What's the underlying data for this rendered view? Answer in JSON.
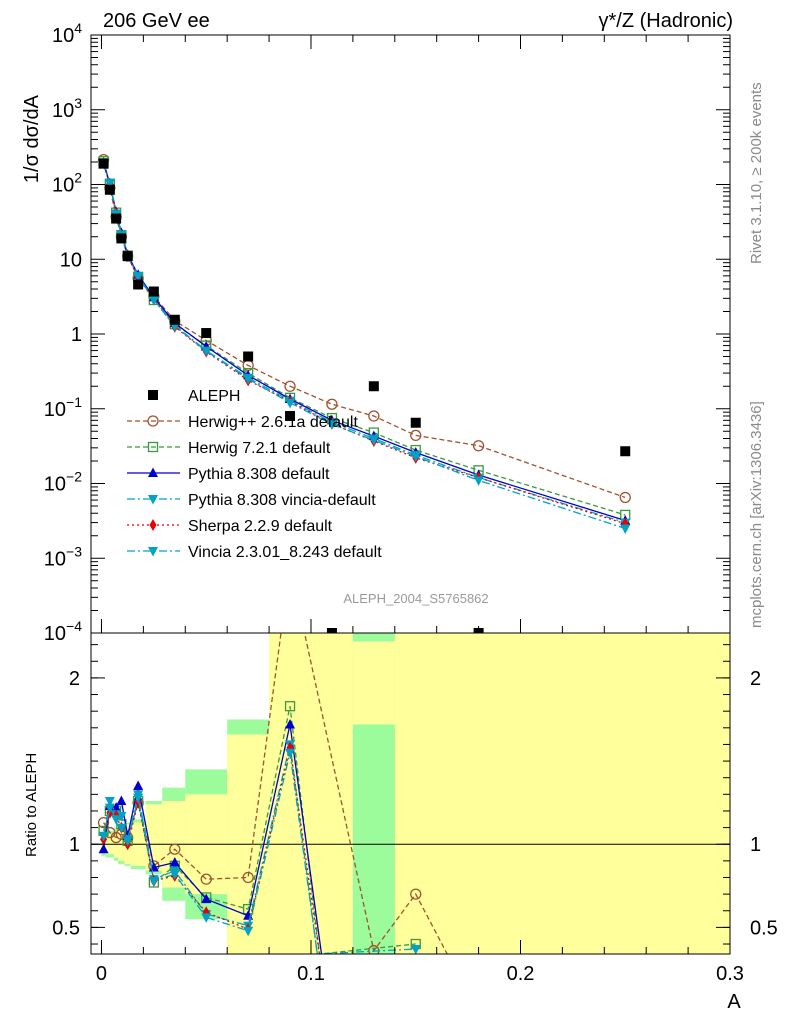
{
  "header": {
    "left": "206 GeV ee",
    "right": "γ*/Z (Hadronic)"
  },
  "side": {
    "rivet": "Rivet 3.1.10, ≥ 200k events",
    "mcplots": "mcplots.cern.ch [arXiv:1306.3436]"
  },
  "watermark": "ALEPH_2004_S5765862",
  "colors": {
    "data": "#000000",
    "herwigpp": "#a0522d",
    "herwig7": "#3a9a3a",
    "pythia": "#0000cc",
    "pythia_vincia": "#00a3c4",
    "sherpa": "#ee0000",
    "vincia": "#00a3c4",
    "band_stat": "#ffff9c",
    "band_tot": "#9cfc9c"
  },
  "chart_data": [
    {
      "type": "scatter",
      "ylabel": "1/σ  dσ/dA",
      "yscale": "log",
      "xlim": [
        -0.005,
        0.3
      ],
      "ylim": [
        0.0001,
        10000
      ],
      "yticks": [
        {
          "v": 0.0001,
          "base": "10",
          "exp": "−4"
        },
        {
          "v": 0.001,
          "base": "10",
          "exp": "−3"
        },
        {
          "v": 0.01,
          "base": "10",
          "exp": "−2"
        },
        {
          "v": 0.1,
          "base": "10",
          "exp": "−1"
        },
        {
          "v": 1,
          "base": "1",
          "exp": ""
        },
        {
          "v": 10,
          "base": "10",
          "exp": ""
        },
        {
          "v": 100,
          "base": "10",
          "exp": "2"
        },
        {
          "v": 1000,
          "base": "10",
          "exp": "3"
        },
        {
          "v": 10000,
          "base": "10",
          "exp": "4"
        }
      ],
      "legend_position": "lower-left",
      "series": [
        {
          "key": "aleph",
          "name": "ALEPH",
          "style": "data",
          "x": [
            0.001,
            0.004,
            0.007,
            0.0095,
            0.0125,
            0.0175,
            0.025,
            0.035,
            0.05,
            0.07,
            0.09,
            0.11,
            0.13,
            0.15,
            0.18,
            0.25
          ],
          "y": [
            190,
            85,
            35,
            19,
            11,
            4.6,
            3.7,
            1.55,
            1.03,
            0.5,
            0.08,
            0.0001,
            0.2,
            0.065,
            0.0001,
            0.027
          ]
        },
        {
          "key": "herwigpp",
          "name": "Herwig++ 2.6.1a default",
          "style": "circle",
          "dash": "5,3",
          "x": [
            0.001,
            0.004,
            0.007,
            0.0095,
            0.0125,
            0.0175,
            0.025,
            0.035,
            0.05,
            0.07,
            0.09,
            0.11,
            0.13,
            0.15,
            0.18,
            0.25
          ],
          "y": [
            215,
            90,
            37,
            20,
            11,
            5.6,
            3.2,
            1.5,
            0.82,
            0.38,
            0.2,
            0.115,
            0.08,
            0.044,
            0.032,
            0.0065
          ]
        },
        {
          "key": "herwig7",
          "name": "Herwig 7.2.1 default",
          "style": "square",
          "dash": "5,3",
          "x": [
            0.001,
            0.004,
            0.007,
            0.0095,
            0.0125,
            0.0175,
            0.025,
            0.035,
            0.05,
            0.07,
            0.09,
            0.11,
            0.13,
            0.15,
            0.18,
            0.25
          ],
          "y": [
            205,
            102,
            42,
            21,
            11.2,
            5.8,
            2.85,
            1.35,
            0.7,
            0.3,
            0.14,
            0.075,
            0.048,
            0.028,
            0.015,
            0.0038
          ]
        },
        {
          "key": "pythia",
          "name": "Pythia 8.308 default",
          "style": "tri-up",
          "dash": "",
          "x": [
            0.001,
            0.004,
            0.007,
            0.0095,
            0.0125,
            0.0175,
            0.025,
            0.035,
            0.05,
            0.07,
            0.09,
            0.11,
            0.13,
            0.15,
            0.18,
            0.25
          ],
          "y": [
            185,
            104,
            43,
            22.5,
            11.5,
            6.2,
            3.1,
            1.4,
            0.68,
            0.28,
            0.135,
            0.07,
            0.043,
            0.026,
            0.013,
            0.0032
          ]
        },
        {
          "key": "pythia_vincia",
          "name": "Pythia 8.308 vincia-default",
          "style": "tri-down",
          "dash": "8,3,2,3",
          "x": [
            0.001,
            0.004,
            0.007,
            0.0095,
            0.0125,
            0.0175,
            0.025,
            0.035,
            0.05,
            0.07,
            0.09,
            0.11,
            0.13,
            0.15,
            0.18,
            0.25
          ],
          "y": [
            200,
            106,
            41,
            21.5,
            11.3,
            6.0,
            2.9,
            1.3,
            0.6,
            0.26,
            0.128,
            0.066,
            0.04,
            0.024,
            0.012,
            0.003
          ]
        },
        {
          "key": "sherpa",
          "name": "Sherpa 2.2.9 default",
          "style": "diamond",
          "dash": "2,3",
          "x": [
            0.001,
            0.004,
            0.007,
            0.0095,
            0.0125,
            0.0175,
            0.025,
            0.035,
            0.05,
            0.07,
            0.09,
            0.11,
            0.13,
            0.15,
            0.18,
            0.25
          ],
          "y": [
            195,
            101,
            41,
            21,
            11.1,
            5.7,
            2.9,
            1.25,
            0.58,
            0.24,
            0.125,
            0.063,
            0.037,
            0.022,
            0.012,
            0.0029
          ]
        },
        {
          "key": "vincia",
          "name": "Vincia 2.3.01_8.243 default",
          "style": "tri-down",
          "dash": "8,3,2,3",
          "x": [
            0.001,
            0.004,
            0.007,
            0.0095,
            0.0125,
            0.0175,
            0.025,
            0.035,
            0.05,
            0.07,
            0.09,
            0.11,
            0.13,
            0.15,
            0.18,
            0.25
          ],
          "y": [
            198,
            104,
            40,
            21,
            11.2,
            5.9,
            2.85,
            1.27,
            0.59,
            0.25,
            0.12,
            0.062,
            0.038,
            0.023,
            0.011,
            0.0025
          ]
        }
      ]
    },
    {
      "type": "line",
      "ylabel": "Ratio to ALEPH",
      "xlabel": "A",
      "xlim": [
        -0.005,
        0.3
      ],
      "ylim": [
        0.34,
        2.27
      ],
      "xticks": [
        {
          "v": 0,
          "label": "0"
        },
        {
          "v": 0.1,
          "label": "0.1"
        },
        {
          "v": 0.2,
          "label": "0.2"
        },
        {
          "v": 0.3,
          "label": "0.3"
        }
      ],
      "yticks": [
        {
          "v": 0.5,
          "label": "0.5"
        },
        {
          "v": 1,
          "label": "1"
        },
        {
          "v": 2,
          "label": "2"
        }
      ],
      "bands": [
        {
          "x0": 0,
          "x1": 0.002,
          "tot": [
            0.93,
            1.07
          ],
          "stat": [
            0.95,
            1.05
          ]
        },
        {
          "x0": 0.002,
          "x1": 0.006,
          "tot": [
            0.92,
            1.08
          ],
          "stat": [
            0.94,
            1.06
          ]
        },
        {
          "x0": 0.006,
          "x1": 0.008,
          "tot": [
            0.9,
            1.1
          ],
          "stat": [
            0.92,
            1.08
          ]
        },
        {
          "x0": 0.008,
          "x1": 0.011,
          "tot": [
            0.88,
            1.12
          ],
          "stat": [
            0.9,
            1.1
          ]
        },
        {
          "x0": 0.011,
          "x1": 0.014,
          "tot": [
            0.87,
            1.13
          ],
          "stat": [
            0.88,
            1.12
          ]
        },
        {
          "x0": 0.014,
          "x1": 0.021,
          "tot": [
            0.85,
            1.15
          ],
          "stat": [
            0.87,
            1.13
          ]
        },
        {
          "x0": 0.021,
          "x1": 0.029,
          "tot": [
            0.82,
            1.26
          ],
          "stat": [
            0.84,
            1.24
          ]
        },
        {
          "x0": 0.029,
          "x1": 0.04,
          "tot": [
            0.66,
            1.34
          ],
          "stat": [
            0.74,
            1.26
          ]
        },
        {
          "x0": 0.04,
          "x1": 0.06,
          "tot": [
            0.55,
            1.45
          ],
          "stat": [
            0.7,
            1.3
          ]
        },
        {
          "x0": 0.06,
          "x1": 0.08,
          "tot": [
            0.25,
            1.75
          ],
          "stat": [
            0.34,
            1.66
          ]
        },
        {
          "x0": 0.08,
          "x1": 0.12,
          "tot": [
            0.25,
            2.8
          ],
          "stat": [
            0.25,
            2.8
          ]
        },
        {
          "x0": 0.12,
          "x1": 0.14,
          "tot": [
            0.25,
            2.8
          ],
          "stat": [
            1.72,
            2.22
          ]
        },
        {
          "x0": 0.14,
          "x1": 0.3,
          "tot": [
            0.25,
            2.8
          ],
          "stat": [
            0.25,
            2.8
          ]
        }
      ],
      "series": [
        {
          "key": "herwigpp",
          "x": [
            0.001,
            0.004,
            0.007,
            0.0095,
            0.0125,
            0.0175,
            0.025,
            0.035,
            0.05,
            0.07,
            0.09,
            0.13,
            0.15,
            0.165
          ],
          "y": [
            1.13,
            1.07,
            1.04,
            1.06,
            1.04,
            1.25,
            0.87,
            0.97,
            0.79,
            0.8,
            2.67,
            0.36,
            0.7,
            0.34
          ]
        },
        {
          "key": "herwig7",
          "x": [
            0.001,
            0.004,
            0.007,
            0.0095,
            0.0125,
            0.0175,
            0.025,
            0.035,
            0.05,
            0.07,
            0.09,
            0.104,
            0.15
          ],
          "y": [
            1.08,
            1.2,
            1.2,
            1.12,
            1.02,
            1.26,
            0.77,
            0.87,
            0.68,
            0.61,
            1.83,
            0.34,
            0.4
          ]
        },
        {
          "key": "pythia",
          "x": [
            0.001,
            0.004,
            0.007,
            0.0095,
            0.0125,
            0.0175,
            0.025,
            0.035,
            0.05,
            0.07,
            0.09,
            0.105
          ],
          "y": [
            0.97,
            1.23,
            1.22,
            1.26,
            1.05,
            1.35,
            0.86,
            0.89,
            0.67,
            0.57,
            1.72,
            0.34
          ]
        },
        {
          "key": "pythia_vincia",
          "x": [
            0.001,
            0.004,
            0.007,
            0.0095,
            0.0125,
            0.0175,
            0.025,
            0.035,
            0.05,
            0.07,
            0.09,
            0.103,
            0.15
          ],
          "y": [
            1.05,
            1.26,
            1.18,
            1.17,
            1.03,
            1.3,
            0.79,
            0.84,
            0.58,
            0.51,
            1.6,
            0.34,
            0.37
          ]
        },
        {
          "key": "sherpa",
          "x": [
            0.001,
            0.004,
            0.007,
            0.0095,
            0.0125,
            0.0175,
            0.025,
            0.035,
            0.05,
            0.07,
            0.09,
            0.104
          ],
          "y": [
            1.03,
            1.19,
            1.17,
            1.1,
            1.0,
            1.25,
            0.78,
            0.81,
            0.59,
            0.49,
            1.58,
            0.34
          ]
        },
        {
          "key": "vincia",
          "x": [
            0.001,
            0.004,
            0.007,
            0.0095,
            0.0125,
            0.0175,
            0.025,
            0.035,
            0.05,
            0.07,
            0.09,
            0.103
          ],
          "y": [
            1.05,
            1.22,
            1.15,
            1.1,
            1.02,
            1.28,
            0.78,
            0.82,
            0.56,
            0.48,
            1.55,
            0.34
          ]
        }
      ]
    }
  ]
}
